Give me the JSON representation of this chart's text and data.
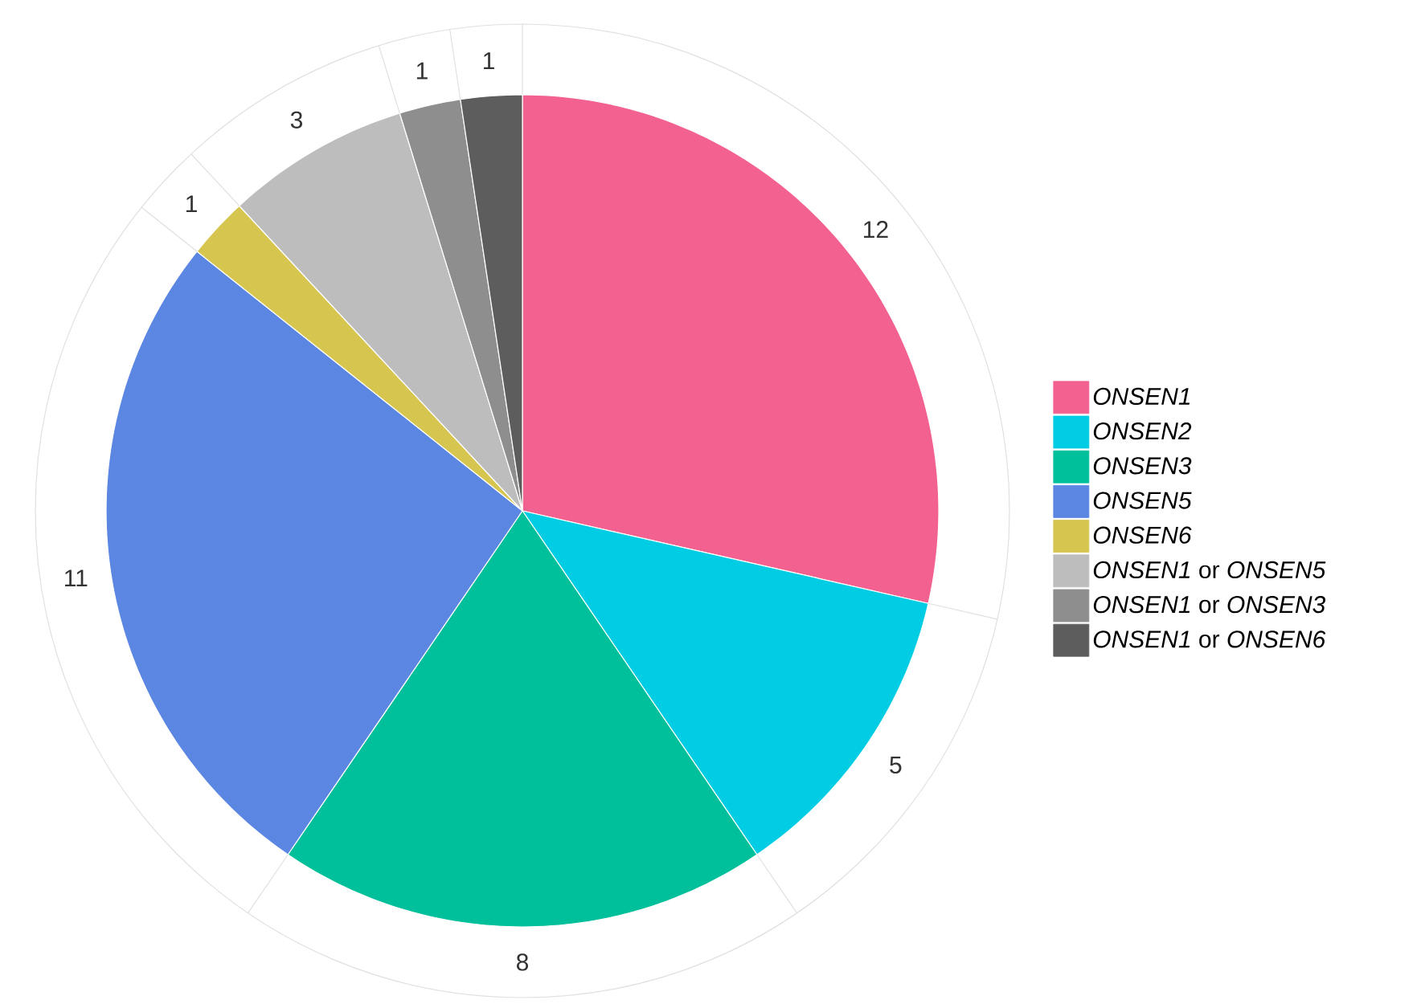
{
  "chart_data": {
    "type": "pie",
    "categories": [
      "*ONSEN1*",
      "*ONSEN2*",
      "*ONSEN3*",
      "*ONSEN5*",
      "*ONSEN6*",
      "*ONSEN1* or *ONSEN5*",
      "*ONSEN1* or *ONSEN3*",
      "*ONSEN1* or *ONSEN6*"
    ],
    "values": [
      12,
      5,
      8,
      11,
      1,
      3,
      1,
      1
    ],
    "colors": [
      "#f26190",
      "#00cde3",
      "#00bf9b",
      "#5b87e3",
      "#d6c54e",
      "#bdbdbd",
      "#8e8e8e",
      "#5d5d5d"
    ],
    "data_labels": true,
    "legend": "right"
  }
}
